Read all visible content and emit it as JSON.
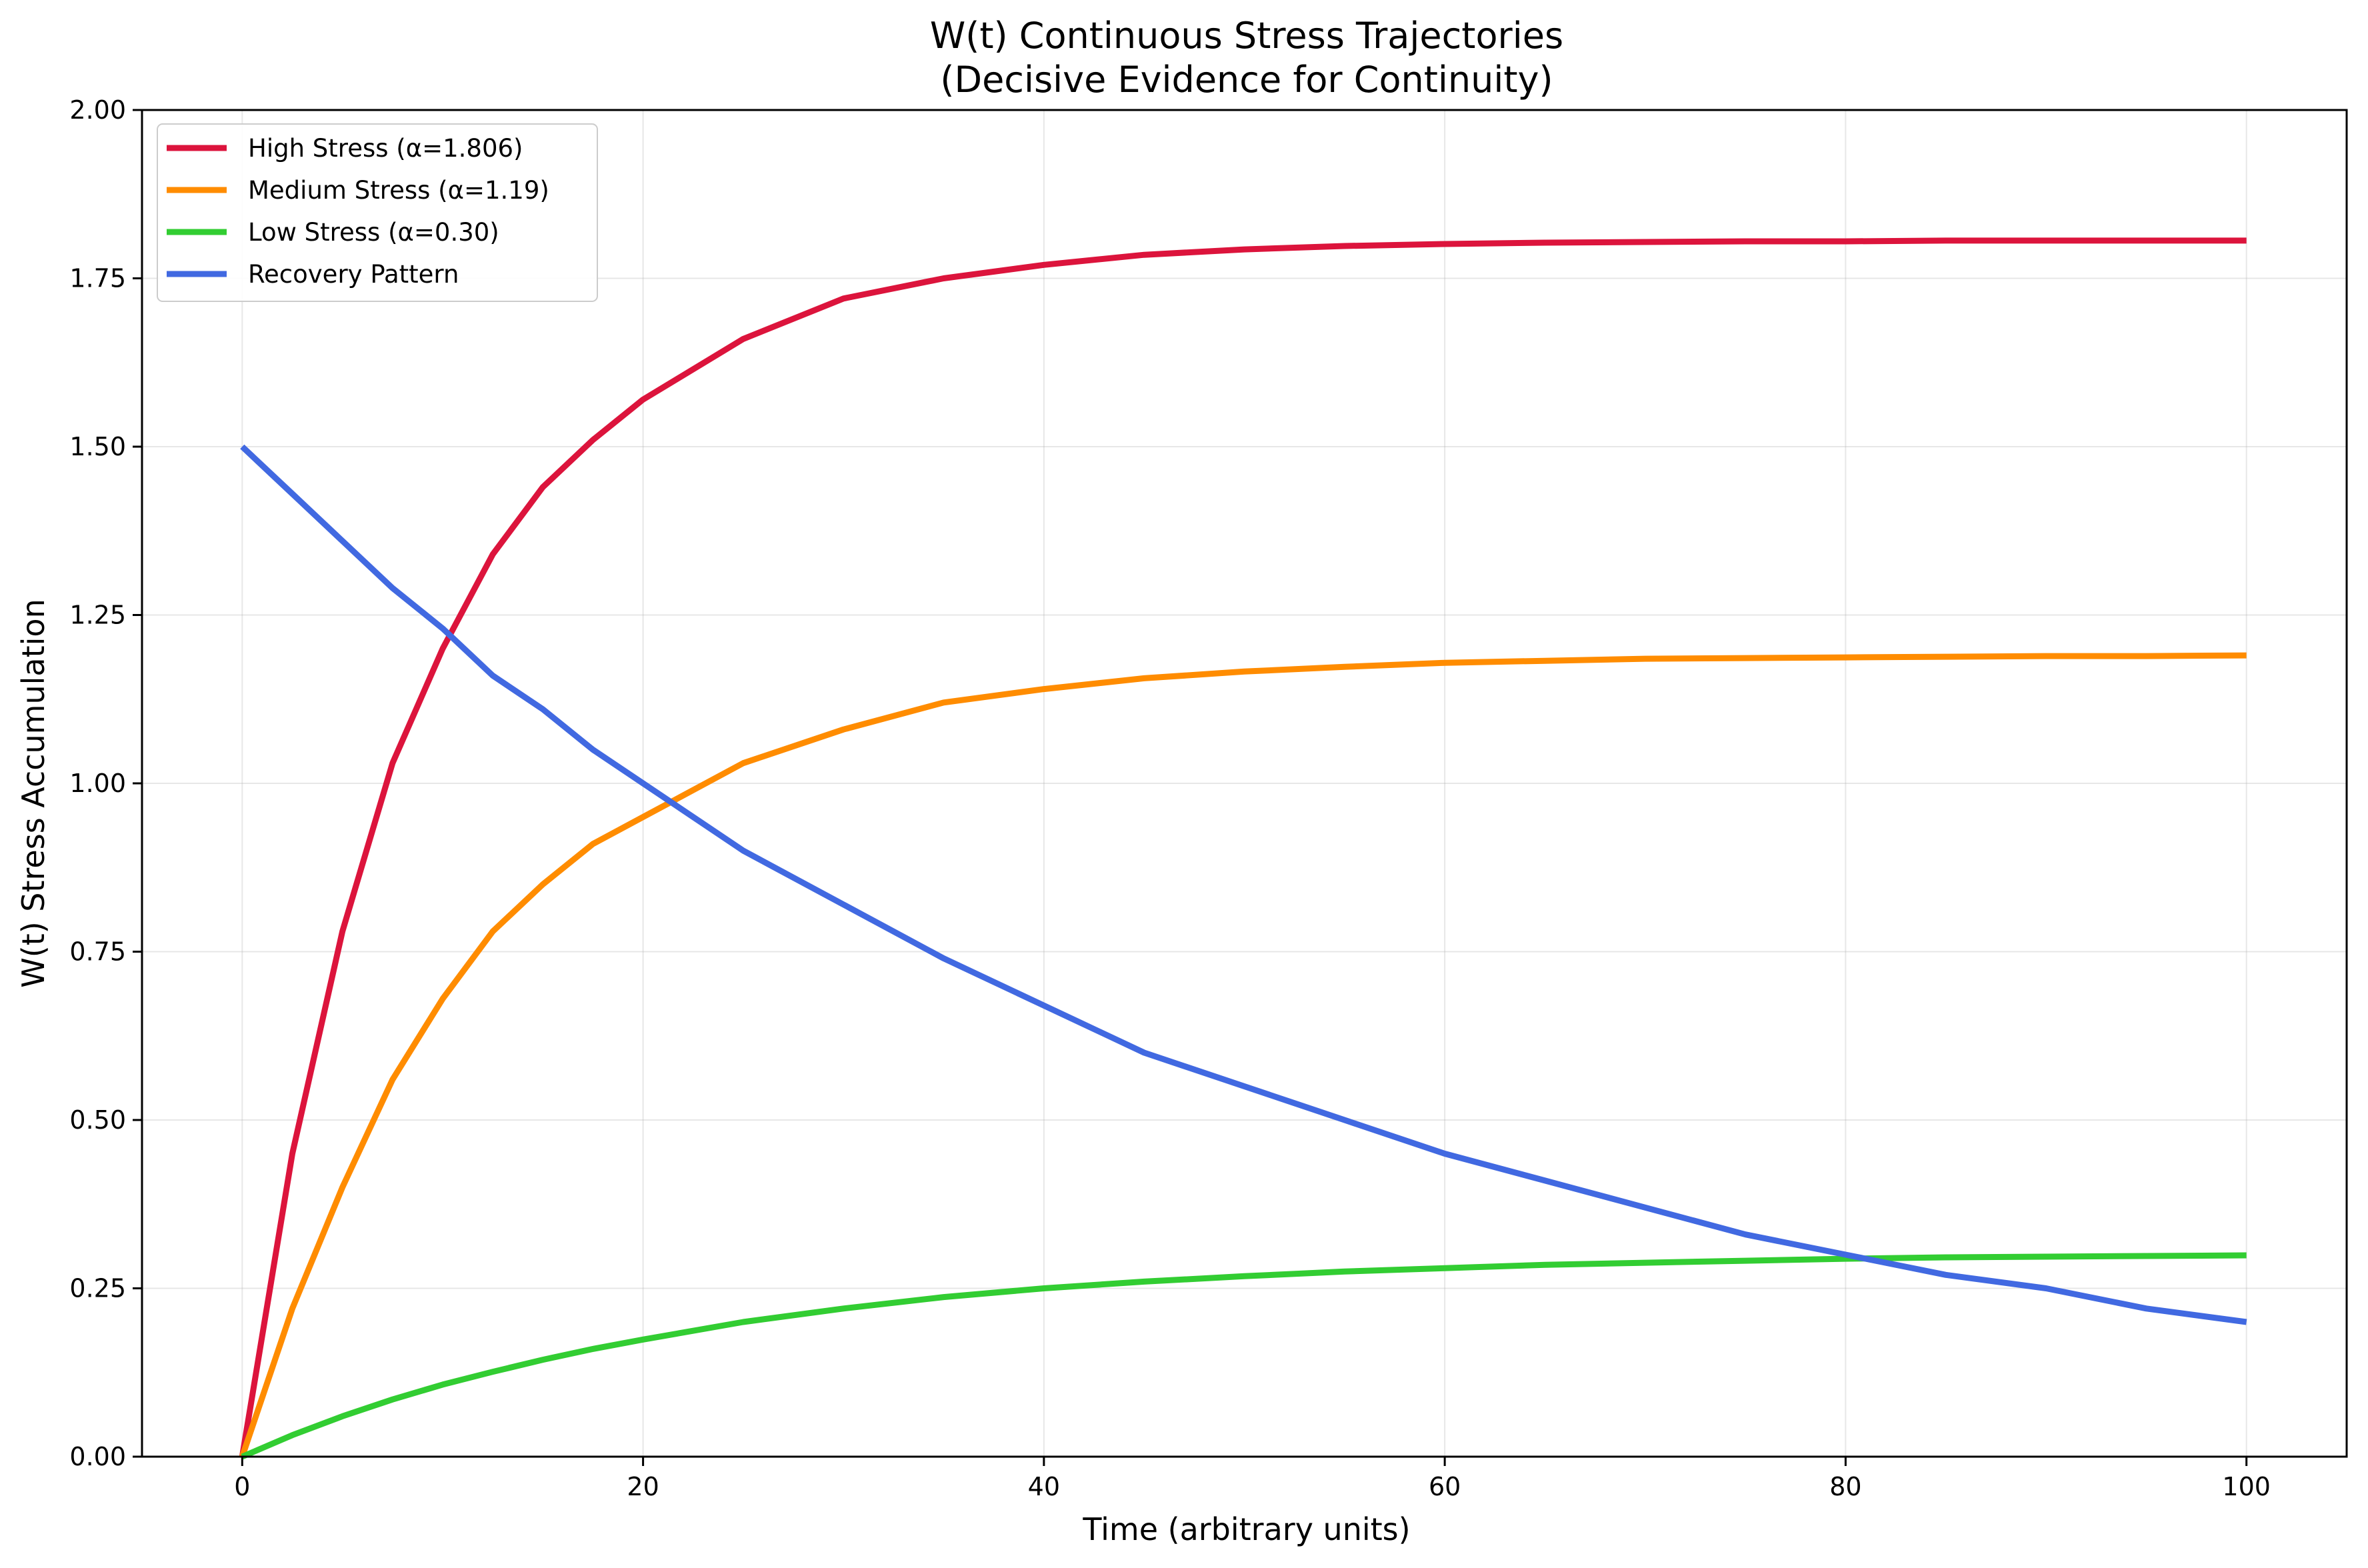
{
  "chart_data": {
    "type": "line",
    "title_line1": "W(t) Continuous Stress Trajectories",
    "title_line2": "(Decisive Evidence for Continuity)",
    "xlabel": "Time (arbitrary units)",
    "ylabel": "W(t) Stress Accumulation",
    "xlim": [
      -5,
      105
    ],
    "ylim": [
      0,
      2.0
    ],
    "xticks": [
      0,
      20,
      40,
      60,
      80,
      100
    ],
    "xtick_labels": [
      "0",
      "20",
      "40",
      "60",
      "80",
      "100"
    ],
    "yticks": [
      0,
      0.25,
      0.5,
      0.75,
      1.0,
      1.25,
      1.5,
      1.75,
      2.0
    ],
    "ytick_labels": [
      "0.00",
      "0.25",
      "0.50",
      "0.75",
      "1.00",
      "1.25",
      "1.50",
      "1.75",
      "2.00"
    ],
    "grid": true,
    "legend_position": "upper-left",
    "x": [
      0,
      2.5,
      5,
      7.5,
      10,
      12.5,
      15,
      17.5,
      20,
      25,
      30,
      35,
      40,
      45,
      50,
      55,
      60,
      65,
      70,
      75,
      80,
      85,
      90,
      95,
      100
    ],
    "series": [
      {
        "name": "High Stress (α=1.806)",
        "color": "#dc143c",
        "values": [
          0.0,
          0.45,
          0.78,
          1.03,
          1.2,
          1.34,
          1.44,
          1.51,
          1.57,
          1.66,
          1.72,
          1.75,
          1.77,
          1.785,
          1.793,
          1.798,
          1.801,
          1.803,
          1.804,
          1.805,
          1.805,
          1.806,
          1.806,
          1.806,
          1.806
        ]
      },
      {
        "name": "Medium Stress (α=1.19)",
        "color": "#ff8c00",
        "values": [
          0.0,
          0.22,
          0.4,
          0.56,
          0.68,
          0.78,
          0.85,
          0.91,
          0.95,
          1.03,
          1.08,
          1.12,
          1.14,
          1.156,
          1.166,
          1.173,
          1.179,
          1.182,
          1.185,
          1.186,
          1.187,
          1.188,
          1.189,
          1.189,
          1.19
        ]
      },
      {
        "name": "Low Stress (α=0.30)",
        "color": "#32cd32",
        "values": [
          0.0,
          0.032,
          0.06,
          0.085,
          0.107,
          0.126,
          0.144,
          0.16,
          0.174,
          0.2,
          0.22,
          0.237,
          0.25,
          0.26,
          0.268,
          0.275,
          0.28,
          0.285,
          0.288,
          0.291,
          0.294,
          0.296,
          0.297,
          0.298,
          0.299
        ]
      },
      {
        "name": "Recovery Pattern",
        "color": "#4169e1",
        "values": [
          1.5,
          1.43,
          1.36,
          1.29,
          1.23,
          1.16,
          1.11,
          1.05,
          1.0,
          0.9,
          0.82,
          0.74,
          0.67,
          0.6,
          0.55,
          0.5,
          0.45,
          0.41,
          0.37,
          0.33,
          0.3,
          0.27,
          0.25,
          0.22,
          0.2
        ]
      }
    ]
  }
}
